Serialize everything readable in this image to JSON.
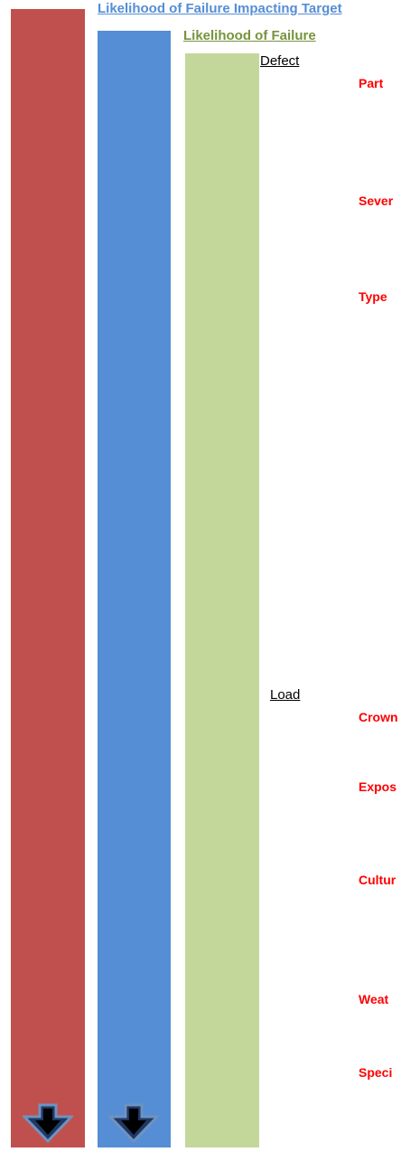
{
  "headings": {
    "target": "Likelihood of Failure Impacting Target",
    "failure": "Likelihood of Failure"
  },
  "sections": {
    "defect": "Defect",
    "load": "Load"
  },
  "factors": {
    "part": "Part",
    "severity": "Sever",
    "type": "Type",
    "crown": "Crown",
    "exposure": "Expos",
    "cultural": "Cultur",
    "weather": "Weat",
    "species": "Speci"
  },
  "colors": {
    "red_bar": "#c0504d",
    "blue_bar": "#558ed5",
    "green_bar": "#c4d79b",
    "target_heading": "#558ed5",
    "failure_heading": "#77933c",
    "factor_text": "#ff0000"
  },
  "icons": {
    "arrow_red": "arrow-down-icon",
    "arrow_blue": "arrow-down-icon"
  }
}
